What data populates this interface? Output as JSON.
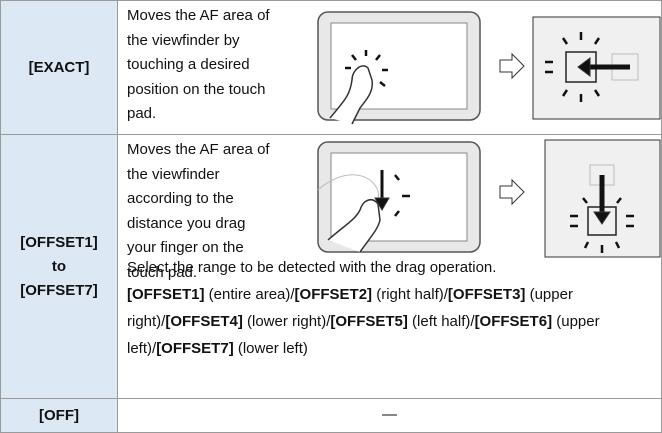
{
  "table": {
    "rows": [
      {
        "label": [
          "[EXACT]"
        ],
        "description": [
          "Moves the AF area of",
          "the viewfinder by",
          "touching a desired",
          "position on the touch",
          "pad."
        ]
      },
      {
        "label": [
          "[OFFSET1]",
          "to",
          "[OFFSET7]"
        ],
        "description": [
          "Moves the AF area of",
          "the viewfinder",
          "according to the",
          "distance you drag",
          "your finger on the",
          "touch pad."
        ],
        "note": "Select the range to be detected with the drag operation.",
        "options": [
          [
            "[OFFSET1]",
            " (entire area)/"
          ],
          [
            "[OFFSET2]",
            " (right half)/"
          ],
          [
            "[OFFSET3]",
            " (upper right)/"
          ],
          [
            "[OFFSET4]",
            " (lower right)/"
          ],
          [
            "[OFFSET5]",
            " (left half)/"
          ],
          [
            "[OFFSET6]",
            " (upper left)/"
          ],
          [
            "[OFFSET7]",
            " (lower left)"
          ]
        ]
      },
      {
        "label": [
          "[OFF]"
        ],
        "description": [
          "—"
        ]
      }
    ]
  }
}
